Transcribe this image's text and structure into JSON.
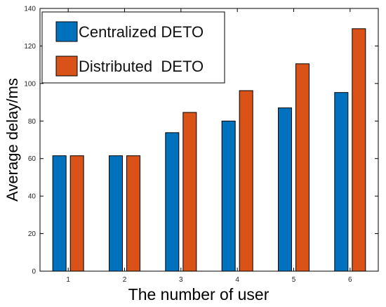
{
  "chart_data": {
    "type": "bar",
    "categories": [
      "1",
      "2",
      "3",
      "4",
      "5",
      "6"
    ],
    "series": [
      {
        "name": "Centralized DETO",
        "color": "#0072BD",
        "values": [
          61.5,
          61.5,
          73.8,
          80,
          87,
          95.2
        ]
      },
      {
        "name": "Distributed  DETO",
        "color": "#D95319",
        "values": [
          61.5,
          61.5,
          84.6,
          96.2,
          110.5,
          129.2
        ]
      }
    ],
    "title": "",
    "xlabel": "The number of user",
    "ylabel": "Average delay/ms",
    "ylim": [
      0,
      140
    ],
    "yticks": [
      "0",
      "20",
      "40",
      "60",
      "80",
      "100",
      "120",
      "140"
    ],
    "grid": false,
    "legend_position": "top-left"
  }
}
